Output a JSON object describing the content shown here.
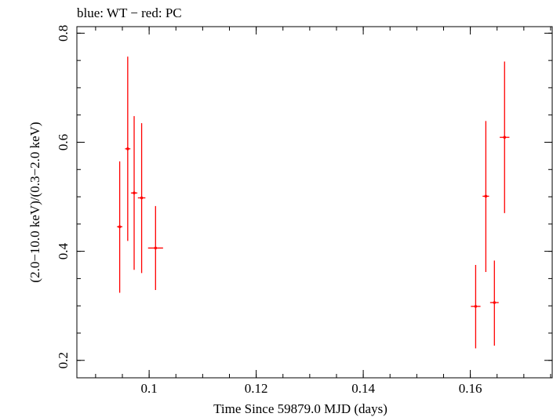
{
  "chart_data": {
    "type": "scatter",
    "title": "blue: WT − red: PC",
    "xlabel": "Time Since 59879.0 MJD (days)",
    "ylabel": "(2.0−10.0 keV)/(0.3−2.0 keV)",
    "xlim": [
      0.0865,
      0.1753
    ],
    "ylim": [
      0.168,
      0.812
    ],
    "x_ticks": [
      {
        "value": 0.1,
        "label": "0.1"
      },
      {
        "value": 0.12,
        "label": "0.12"
      },
      {
        "value": 0.14,
        "label": "0.14"
      },
      {
        "value": 0.16,
        "label": "0.16"
      }
    ],
    "x_minor_step": 0.005,
    "y_ticks": [
      {
        "value": 0.2,
        "label": "0.2"
      },
      {
        "value": 0.4,
        "label": "0.4"
      },
      {
        "value": 0.6,
        "label": "0.6"
      },
      {
        "value": 0.8,
        "label": "0.8"
      }
    ],
    "y_minor_step": 0.05,
    "grid": false,
    "series": [
      {
        "color": "#ff0000",
        "points": [
          {
            "x": 0.0945,
            "xerr": 0.0005,
            "y": 0.445,
            "ylo": 0.324,
            "yhi": 0.565
          },
          {
            "x": 0.096,
            "xerr": 0.0005,
            "y": 0.588,
            "ylo": 0.419,
            "yhi": 0.757
          },
          {
            "x": 0.0972,
            "xerr": 0.0006,
            "y": 0.507,
            "ylo": 0.366,
            "yhi": 0.648
          },
          {
            "x": 0.0986,
            "xerr": 0.0007,
            "y": 0.498,
            "ylo": 0.36,
            "yhi": 0.635
          },
          {
            "x": 0.1012,
            "xerr": 0.0014,
            "y": 0.406,
            "ylo": 0.329,
            "yhi": 0.483
          },
          {
            "x": 0.161,
            "xerr": 0.0009,
            "y": 0.299,
            "ylo": 0.222,
            "yhi": 0.375
          },
          {
            "x": 0.1629,
            "xerr": 0.0006,
            "y": 0.501,
            "ylo": 0.362,
            "yhi": 0.639
          },
          {
            "x": 0.1645,
            "xerr": 0.0008,
            "y": 0.306,
            "ylo": 0.227,
            "yhi": 0.383
          },
          {
            "x": 0.1664,
            "xerr": 0.0009,
            "y": 0.609,
            "ylo": 0.47,
            "yhi": 0.748
          }
        ]
      }
    ]
  }
}
